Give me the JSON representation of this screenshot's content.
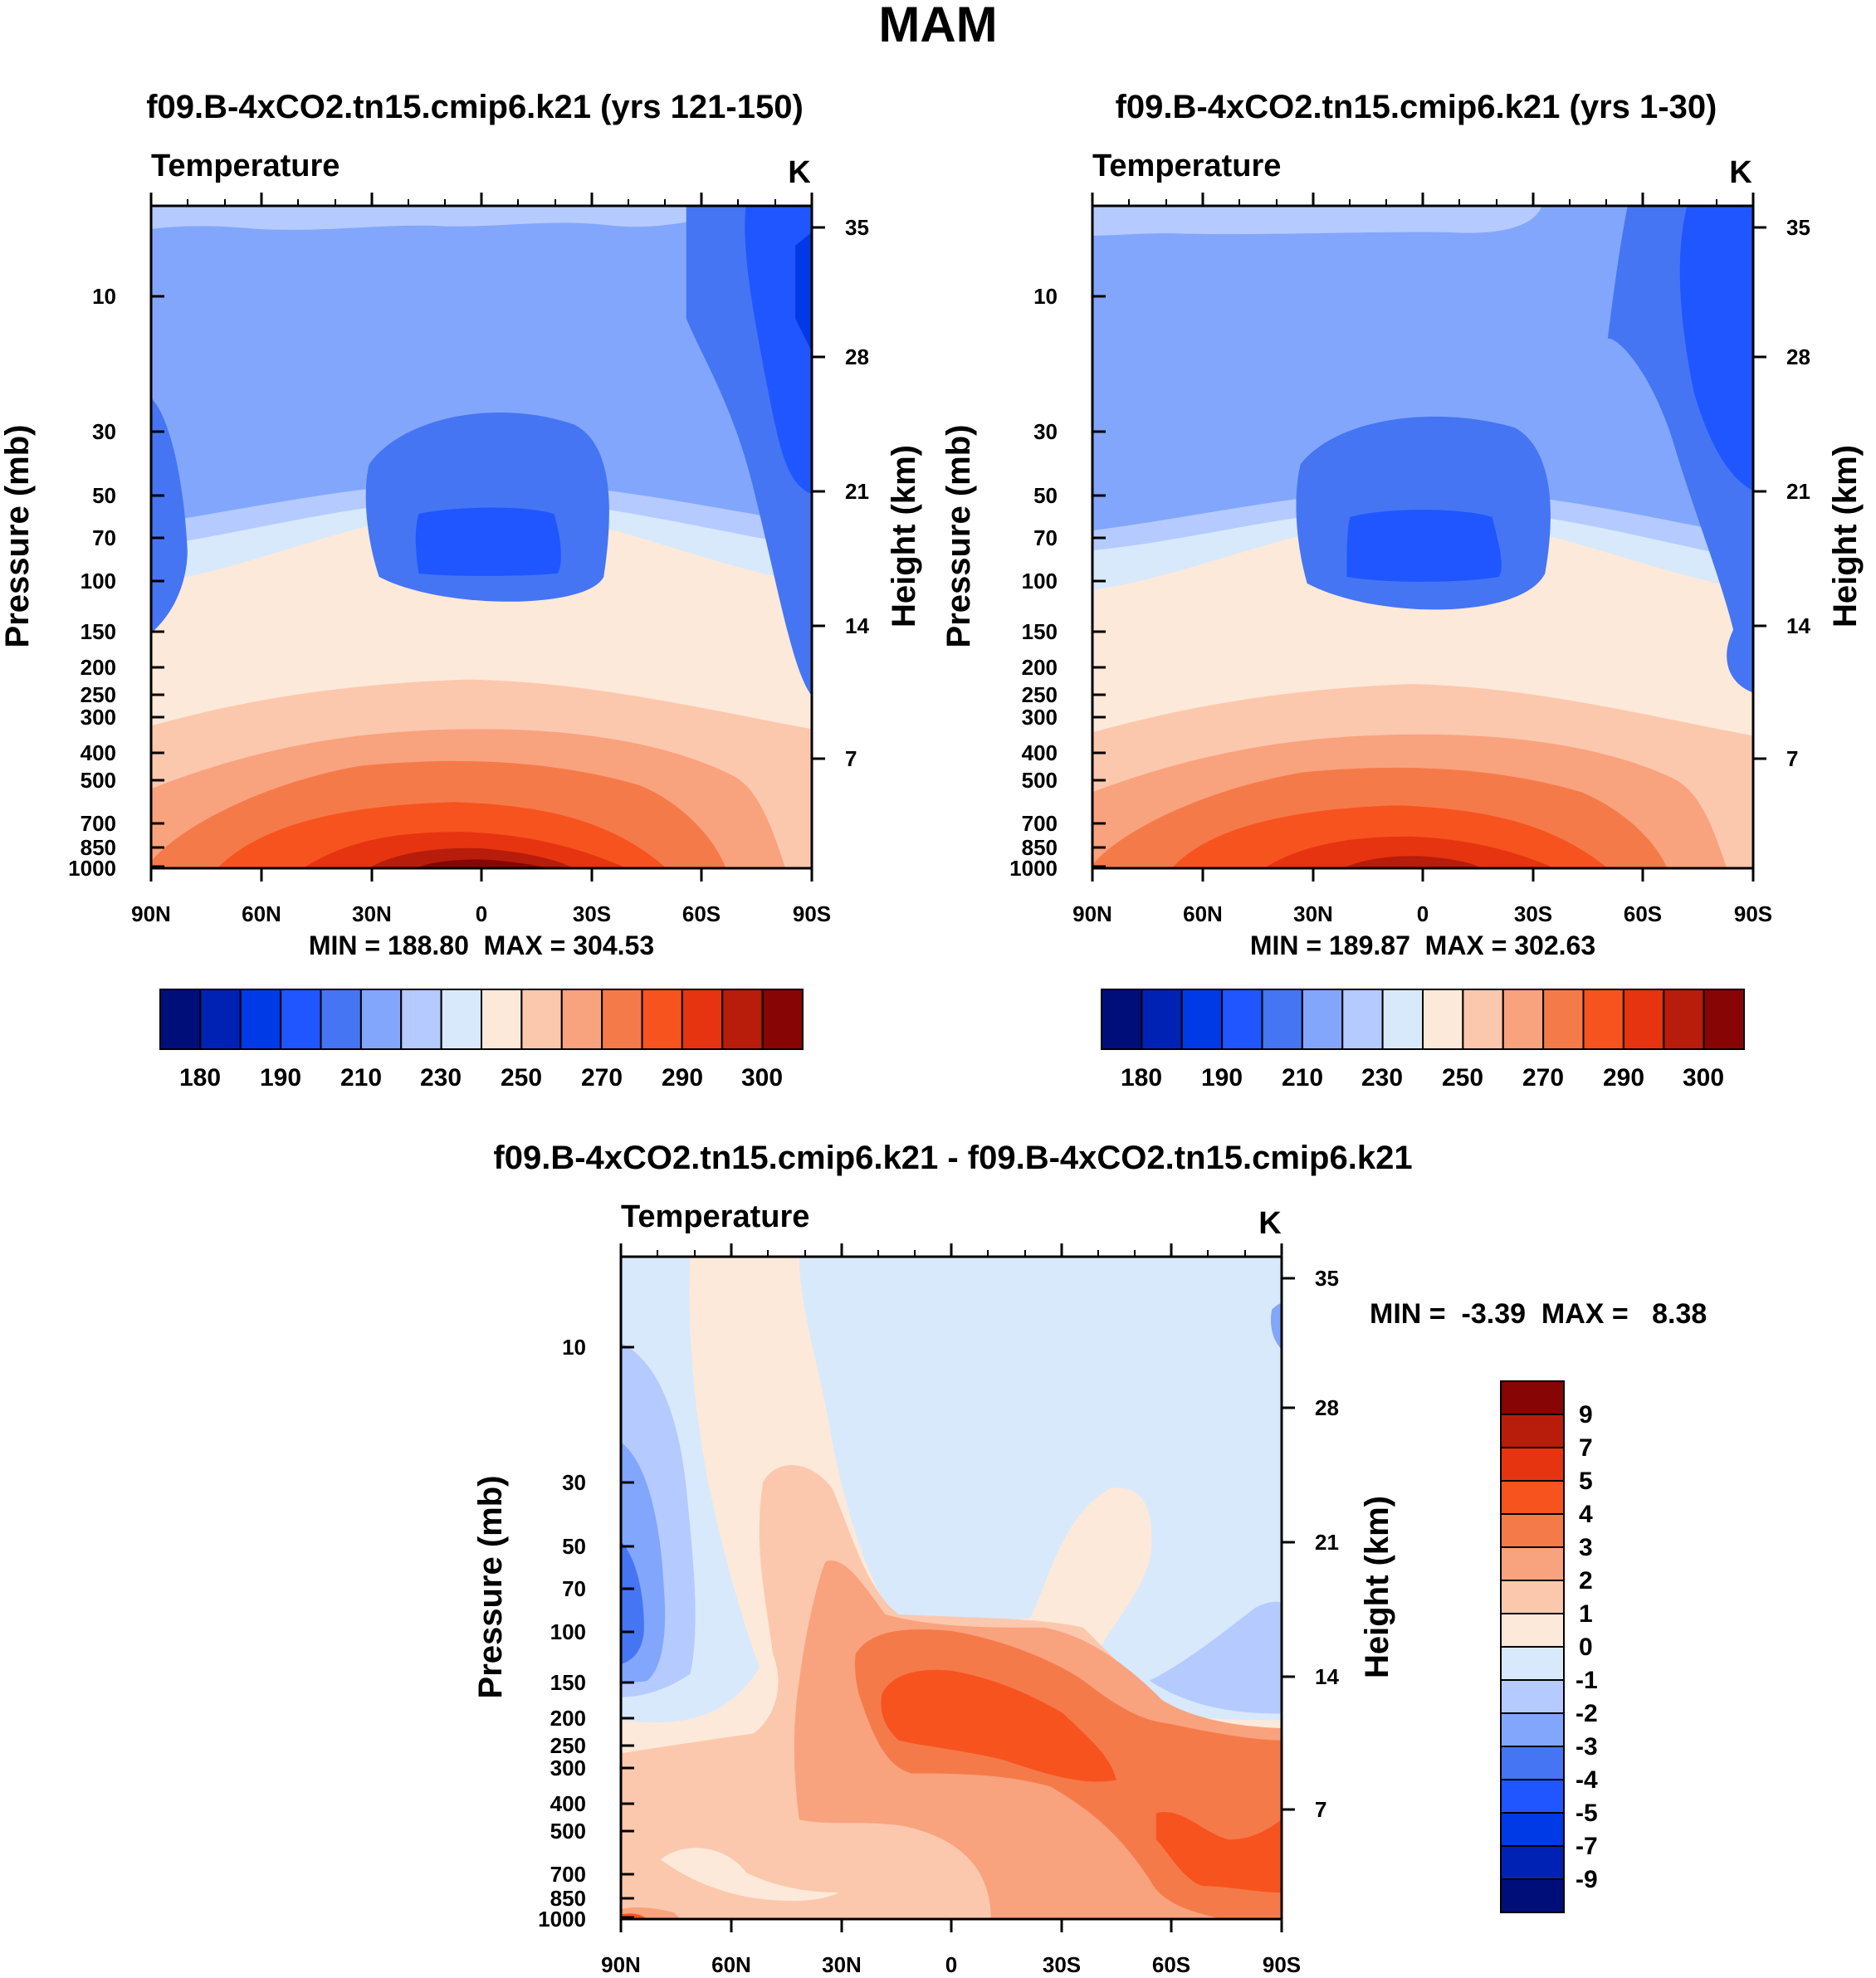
{
  "figure_title": "MAM",
  "colors": {
    "abs_scale": [
      "#000e7a",
      "#0022b4",
      "#0039e6",
      "#1f56ff",
      "#4575f2",
      "#82a6fb",
      "#b5cafe",
      "#d8e9fc",
      "#fde9d9",
      "#fbc8ae",
      "#f9a27e",
      "#f57a4a",
      "#f7531f",
      "#e63410",
      "#b81c0a",
      "#870505"
    ],
    "diff_scale": [
      "#000e7a",
      "#0022b4",
      "#0039e6",
      "#1f56ff",
      "#4575f2",
      "#82a6fb",
      "#b5cafe",
      "#d8e9fc",
      "#fde9d9",
      "#fbc8ae",
      "#f9a27e",
      "#f57a4a",
      "#f7531f",
      "#e63410",
      "#b81c0a",
      "#870505"
    ]
  },
  "chart_data": [
    {
      "type": "heatmap",
      "title": "f09.B-4xCO2.tn15.cmip6.k21 (yrs 121-150)",
      "variable": "Temperature",
      "units": "K",
      "ylabel": "Pressure (mb)",
      "ylabel_right": "Height (km)",
      "x_ticks": [
        "90N",
        "60N",
        "30N",
        "0",
        "30S",
        "60S",
        "90S"
      ],
      "y_ticks": [
        "10",
        "30",
        "50",
        "70",
        "100",
        "150",
        "200",
        "250",
        "300",
        "400",
        "500",
        "700",
        "850",
        "1000"
      ],
      "y_ticks_right": [
        "35",
        "28",
        "21",
        "14",
        "7"
      ],
      "stats": "MIN = 188.80  MAX = 304.53",
      "colorbar_labels": [
        "180",
        "190",
        "210",
        "230",
        "250",
        "270",
        "290",
        "300"
      ],
      "levels": [
        180,
        190,
        200,
        210,
        220,
        230,
        240,
        250,
        260,
        270,
        280,
        290,
        300
      ]
    },
    {
      "type": "heatmap",
      "title": "f09.B-4xCO2.tn15.cmip6.k21 (yrs 1-30)",
      "variable": "Temperature",
      "units": "K",
      "ylabel": "Pressure (mb)",
      "ylabel_right": "Height (km)",
      "x_ticks": [
        "90N",
        "60N",
        "30N",
        "0",
        "30S",
        "60S",
        "90S"
      ],
      "y_ticks": [
        "10",
        "30",
        "50",
        "70",
        "100",
        "150",
        "200",
        "250",
        "300",
        "400",
        "500",
        "700",
        "850",
        "1000"
      ],
      "y_ticks_right": [
        "35",
        "28",
        "21",
        "14",
        "7"
      ],
      "stats": "MIN = 189.87  MAX = 302.63",
      "colorbar_labels": [
        "180",
        "190",
        "210",
        "230",
        "250",
        "270",
        "290",
        "300"
      ],
      "levels": [
        180,
        190,
        200,
        210,
        220,
        230,
        240,
        250,
        260,
        270,
        280,
        290,
        300
      ]
    },
    {
      "type": "heatmap",
      "title": "f09.B-4xCO2.tn15.cmip6.k21 - f09.B-4xCO2.tn15.cmip6.k21",
      "variable": "Temperature",
      "units": "K",
      "ylabel": "Pressure (mb)",
      "ylabel_right": "Height (km)",
      "x_ticks": [
        "90N",
        "60N",
        "30N",
        "0",
        "30S",
        "60S",
        "90S"
      ],
      "y_ticks": [
        "10",
        "30",
        "50",
        "70",
        "100",
        "150",
        "200",
        "250",
        "300",
        "400",
        "500",
        "700",
        "850",
        "1000"
      ],
      "y_ticks_right": [
        "35",
        "28",
        "21",
        "14",
        "7"
      ],
      "stats": "MIN =  -3.39  MAX =   8.38",
      "colorbar_labels": [
        "9",
        "7",
        "5",
        "4",
        "3",
        "2",
        "1",
        "0",
        "-1",
        "-2",
        "-3",
        "-4",
        "-5",
        "-7",
        "-9"
      ]
    }
  ]
}
